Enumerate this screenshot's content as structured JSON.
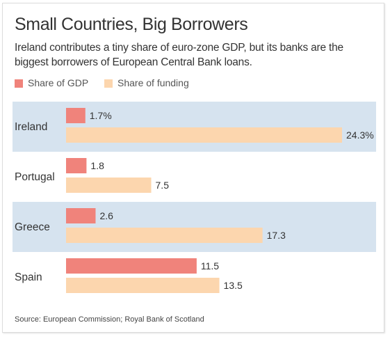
{
  "title": "Small Countries, Big Borrowers",
  "subtitle": "Ireland contributes a tiny share of euro-zone GDP, but its banks are the biggest borrowers of European Central Bank loans.",
  "source": "Source: European Commission; Royal Bank of Scotland",
  "colors": {
    "gdp": "#f0837b",
    "funding": "#fcd6ae",
    "band": "#d6e3ef",
    "text": "#333333"
  },
  "legend": [
    {
      "label": "Share of GDP",
      "color": "#f0837b"
    },
    {
      "label": "Share of funding",
      "color": "#fcd6ae"
    }
  ],
  "chart_data": {
    "type": "bar",
    "orientation": "horizontal",
    "categories": [
      "Ireland",
      "Portugal",
      "Greece",
      "Spain"
    ],
    "series": [
      {
        "name": "Share of GDP",
        "values": [
          1.7,
          1.8,
          2.6,
          11.5
        ],
        "labels": [
          "1.7%",
          "1.8",
          "2.6",
          "11.5"
        ]
      },
      {
        "name": "Share of funding",
        "values": [
          24.3,
          7.5,
          17.3,
          13.5
        ],
        "labels": [
          "24.3%",
          "7.5",
          "17.3",
          "13.5"
        ]
      }
    ],
    "xlim": [
      0,
      24.3
    ],
    "grid": false,
    "legend_position": "top-left"
  }
}
